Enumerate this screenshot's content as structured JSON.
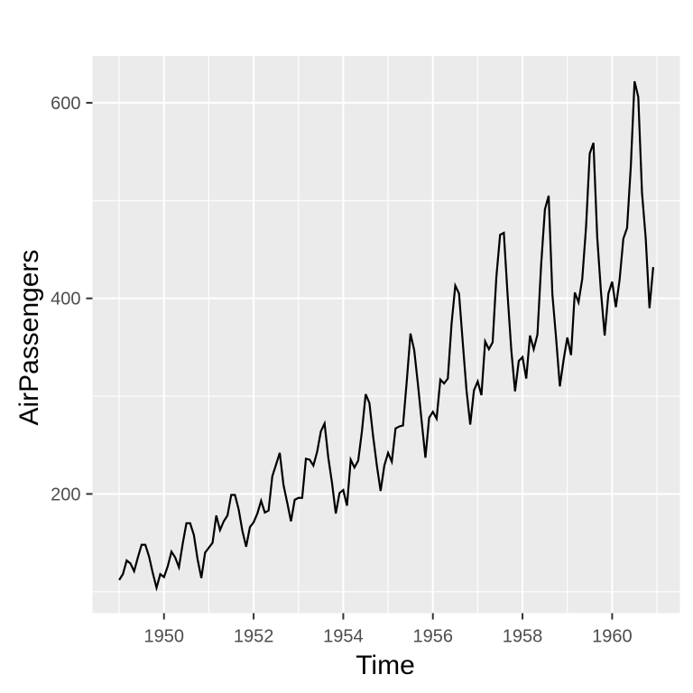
{
  "chart_data": {
    "type": "line",
    "title": "",
    "xlabel": "Time",
    "ylabel": "AirPassengers",
    "series_name": "AirPassengers",
    "start_year": 1949,
    "frequency": 12,
    "x_range": [
      1949,
      1960.917
    ],
    "ylim_data": [
      104,
      622
    ],
    "x_ticks": [
      1950,
      1952,
      1954,
      1956,
      1960,
      1958
    ],
    "x_tick_labels": [
      "1950",
      "1952",
      "1954",
      "1956",
      "1960",
      "1958"
    ],
    "x_minor_ticks": [
      1949,
      1951,
      1953,
      1955,
      1957,
      1959,
      1961
    ],
    "y_ticks": [
      200,
      400,
      600
    ],
    "y_tick_labels": [
      "200",
      "400",
      "600"
    ],
    "y_minor_ticks": [
      100,
      300,
      500
    ],
    "legend_position": "none",
    "grid": "major-and-minor",
    "values": [
      112,
      118,
      132,
      129,
      121,
      135,
      148,
      148,
      136,
      119,
      104,
      118,
      115,
      126,
      141,
      135,
      125,
      149,
      170,
      170,
      158,
      133,
      114,
      140,
      145,
      150,
      178,
      163,
      172,
      178,
      199,
      199,
      184,
      162,
      146,
      166,
      171,
      180,
      193,
      181,
      183,
      218,
      230,
      242,
      209,
      191,
      172,
      194,
      196,
      196,
      236,
      235,
      229,
      243,
      264,
      272,
      237,
      211,
      180,
      201,
      204,
      188,
      235,
      227,
      234,
      264,
      302,
      293,
      259,
      229,
      203,
      229,
      242,
      233,
      267,
      269,
      270,
      315,
      364,
      347,
      312,
      274,
      237,
      278,
      284,
      277,
      317,
      313,
      318,
      374,
      413,
      405,
      355,
      306,
      271,
      306,
      315,
      301,
      356,
      348,
      355,
      422,
      465,
      467,
      404,
      347,
      305,
      336,
      340,
      318,
      362,
      348,
      363,
      435,
      491,
      505,
      404,
      359,
      310,
      337,
      360,
      342,
      406,
      396,
      420,
      472,
      548,
      559,
      463,
      407,
      362,
      405,
      417,
      391,
      419,
      461,
      472,
      535,
      622,
      606,
      508,
      461,
      390,
      432
    ],
    "colors": {
      "panel_background": "#EBEBEB",
      "grid_line": "#FFFFFF",
      "data_line": "#000000",
      "tick_label": "#4D4D4D",
      "tick_mark": "#333333",
      "axis_title": "#000000",
      "figure_background": "#FFFFFF"
    }
  }
}
